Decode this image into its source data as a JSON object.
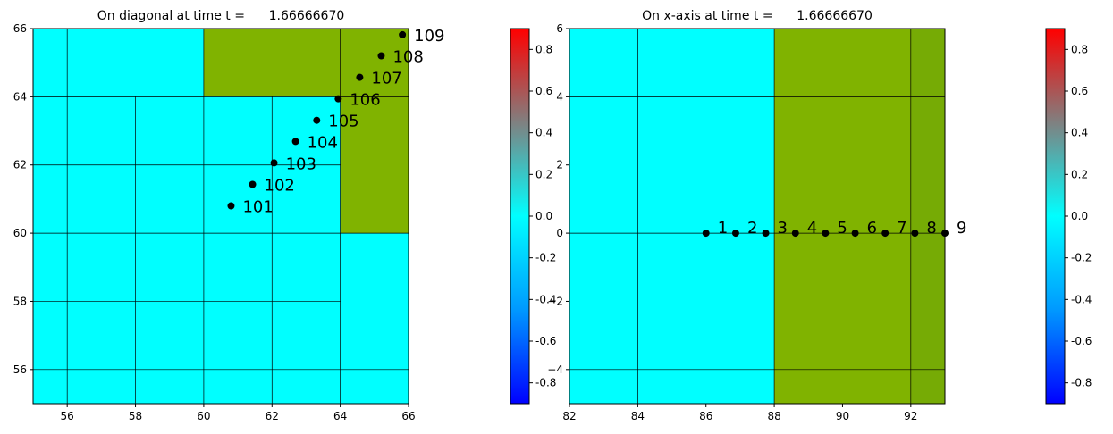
{
  "colors": {
    "cyan": "#00ffff",
    "olive": "#80b300",
    "olive_dark": "#76ab05",
    "marker": "#000000",
    "colorbar_stops": [
      "#0000ff",
      "#0099ff",
      "#00ffff",
      "#808080",
      "#ff0000"
    ]
  },
  "chart_data": [
    {
      "type": "heatmap",
      "title": "On diagonal at time t =      1.66666670",
      "xlim": [
        55,
        66
      ],
      "ylim": [
        55,
        66
      ],
      "xticks": [
        "56",
        "58",
        "60",
        "62",
        "64",
        "66"
      ],
      "xtick_values": [
        56,
        58,
        60,
        62,
        64,
        66
      ],
      "yticks": [
        "56",
        "58",
        "60",
        "62",
        "64",
        "66"
      ],
      "ytick_values": [
        56,
        58,
        60,
        62,
        64,
        66
      ],
      "cells": [
        {
          "x0": 55,
          "x1": 60,
          "y0": 64,
          "y1": 66,
          "value": 0,
          "color": "cyan"
        },
        {
          "x0": 60,
          "x1": 64,
          "y0": 64,
          "y1": 66,
          "value": 0.5,
          "color": "olive"
        },
        {
          "x0": 64,
          "x1": 66,
          "y0": 64,
          "y1": 66,
          "value": 0.5,
          "color": "olive"
        },
        {
          "x0": 55,
          "x1": 64,
          "y0": 55,
          "y1": 64,
          "value": 0,
          "color": "cyan"
        },
        {
          "x0": 64,
          "x1": 66,
          "y0": 60,
          "y1": 64,
          "value": 0.5,
          "color": "olive"
        },
        {
          "x0": 64,
          "x1": 66,
          "y0": 55,
          "y1": 60,
          "value": 0,
          "color": "cyan"
        }
      ],
      "grid_segments": [
        {
          "x1": 56,
          "y1": 55,
          "x2": 56,
          "y2": 66
        },
        {
          "x1": 58,
          "y1": 55,
          "x2": 58,
          "y2": 64
        },
        {
          "x1": 60,
          "y1": 55,
          "x2": 60,
          "y2": 66
        },
        {
          "x1": 62,
          "y1": 55,
          "x2": 62,
          "y2": 64
        },
        {
          "x1": 64,
          "y1": 55,
          "x2": 64,
          "y2": 66
        },
        {
          "x1": 55,
          "y1": 56,
          "x2": 66,
          "y2": 56
        },
        {
          "x1": 55,
          "y1": 58,
          "x2": 64,
          "y2": 58
        },
        {
          "x1": 55,
          "y1": 60,
          "x2": 66,
          "y2": 60
        },
        {
          "x1": 55,
          "y1": 62,
          "x2": 64,
          "y2": 62
        },
        {
          "x1": 55,
          "y1": 64,
          "x2": 66,
          "y2": 64
        }
      ],
      "points": [
        {
          "label": "101",
          "x": 60.8,
          "y": 60.8
        },
        {
          "label": "102",
          "x": 61.43,
          "y": 61.43
        },
        {
          "label": "103",
          "x": 62.06,
          "y": 62.06
        },
        {
          "label": "104",
          "x": 62.69,
          "y": 62.69
        },
        {
          "label": "105",
          "x": 63.31,
          "y": 63.31
        },
        {
          "label": "106",
          "x": 63.94,
          "y": 63.94
        },
        {
          "label": "107",
          "x": 64.57,
          "y": 64.57
        },
        {
          "label": "108",
          "x": 65.2,
          "y": 65.2
        },
        {
          "label": "109",
          "x": 65.82,
          "y": 65.82
        }
      ],
      "colorbar": {
        "range": [
          -0.9,
          0.9
        ],
        "ticks": [
          "-0.8",
          "-0.6",
          "-0.4",
          "-0.2",
          "0.0",
          "0.2",
          "0.4",
          "0.6",
          "0.8"
        ],
        "tick_values": [
          -0.8,
          -0.6,
          -0.4,
          -0.2,
          0.0,
          0.2,
          0.4,
          0.6,
          0.8
        ]
      }
    },
    {
      "type": "heatmap",
      "title": "On x-axis at time t =      1.66666670",
      "xlim": [
        82,
        93
      ],
      "ylim": [
        -5,
        6
      ],
      "xticks": [
        "82",
        "84",
        "86",
        "88",
        "90",
        "92"
      ],
      "xtick_values": [
        82,
        84,
        86,
        88,
        90,
        92
      ],
      "yticks": [
        "−4",
        "−2",
        "0",
        "2",
        "4",
        "6"
      ],
      "ytick_values": [
        -4,
        -2,
        0,
        2,
        4,
        6
      ],
      "cells": [
        {
          "x0": 82,
          "x1": 88,
          "y0": -5,
          "y1": 6,
          "value": 0,
          "color": "cyan"
        },
        {
          "x0": 88,
          "x1": 92,
          "y0": -5,
          "y1": 6,
          "value": 0.5,
          "color": "olive"
        },
        {
          "x0": 92,
          "x1": 93,
          "y0": -5,
          "y1": 6,
          "value": 0.45,
          "color": "olive_dark"
        }
      ],
      "grid_segments": [
        {
          "x1": 84,
          "y1": -5,
          "x2": 84,
          "y2": 6
        },
        {
          "x1": 88,
          "y1": -5,
          "x2": 88,
          "y2": 6
        },
        {
          "x1": 92,
          "y1": -5,
          "x2": 92,
          "y2": 6
        },
        {
          "x1": 82,
          "y1": -4,
          "x2": 93,
          "y2": -4
        },
        {
          "x1": 82,
          "y1": 0,
          "x2": 93,
          "y2": 0
        },
        {
          "x1": 82,
          "y1": 4,
          "x2": 93,
          "y2": 4
        }
      ],
      "points": [
        {
          "label": "1",
          "x": 86.0,
          "y": 0
        },
        {
          "label": "2",
          "x": 86.87,
          "y": 0
        },
        {
          "label": "3",
          "x": 87.75,
          "y": 0
        },
        {
          "label": "4",
          "x": 88.62,
          "y": 0
        },
        {
          "label": "5",
          "x": 89.5,
          "y": 0
        },
        {
          "label": "6",
          "x": 90.37,
          "y": 0
        },
        {
          "label": "7",
          "x": 91.25,
          "y": 0
        },
        {
          "label": "8",
          "x": 92.12,
          "y": 0
        },
        {
          "label": "9",
          "x": 93.0,
          "y": 0
        }
      ],
      "colorbar": {
        "range": [
          -0.9,
          0.9
        ],
        "ticks": [
          "-0.8",
          "-0.6",
          "-0.4",
          "-0.2",
          "0.0",
          "0.2",
          "0.4",
          "0.6",
          "0.8"
        ],
        "tick_values": [
          -0.8,
          -0.6,
          -0.4,
          -0.2,
          0.0,
          0.2,
          0.4,
          0.6,
          0.8
        ]
      }
    }
  ]
}
